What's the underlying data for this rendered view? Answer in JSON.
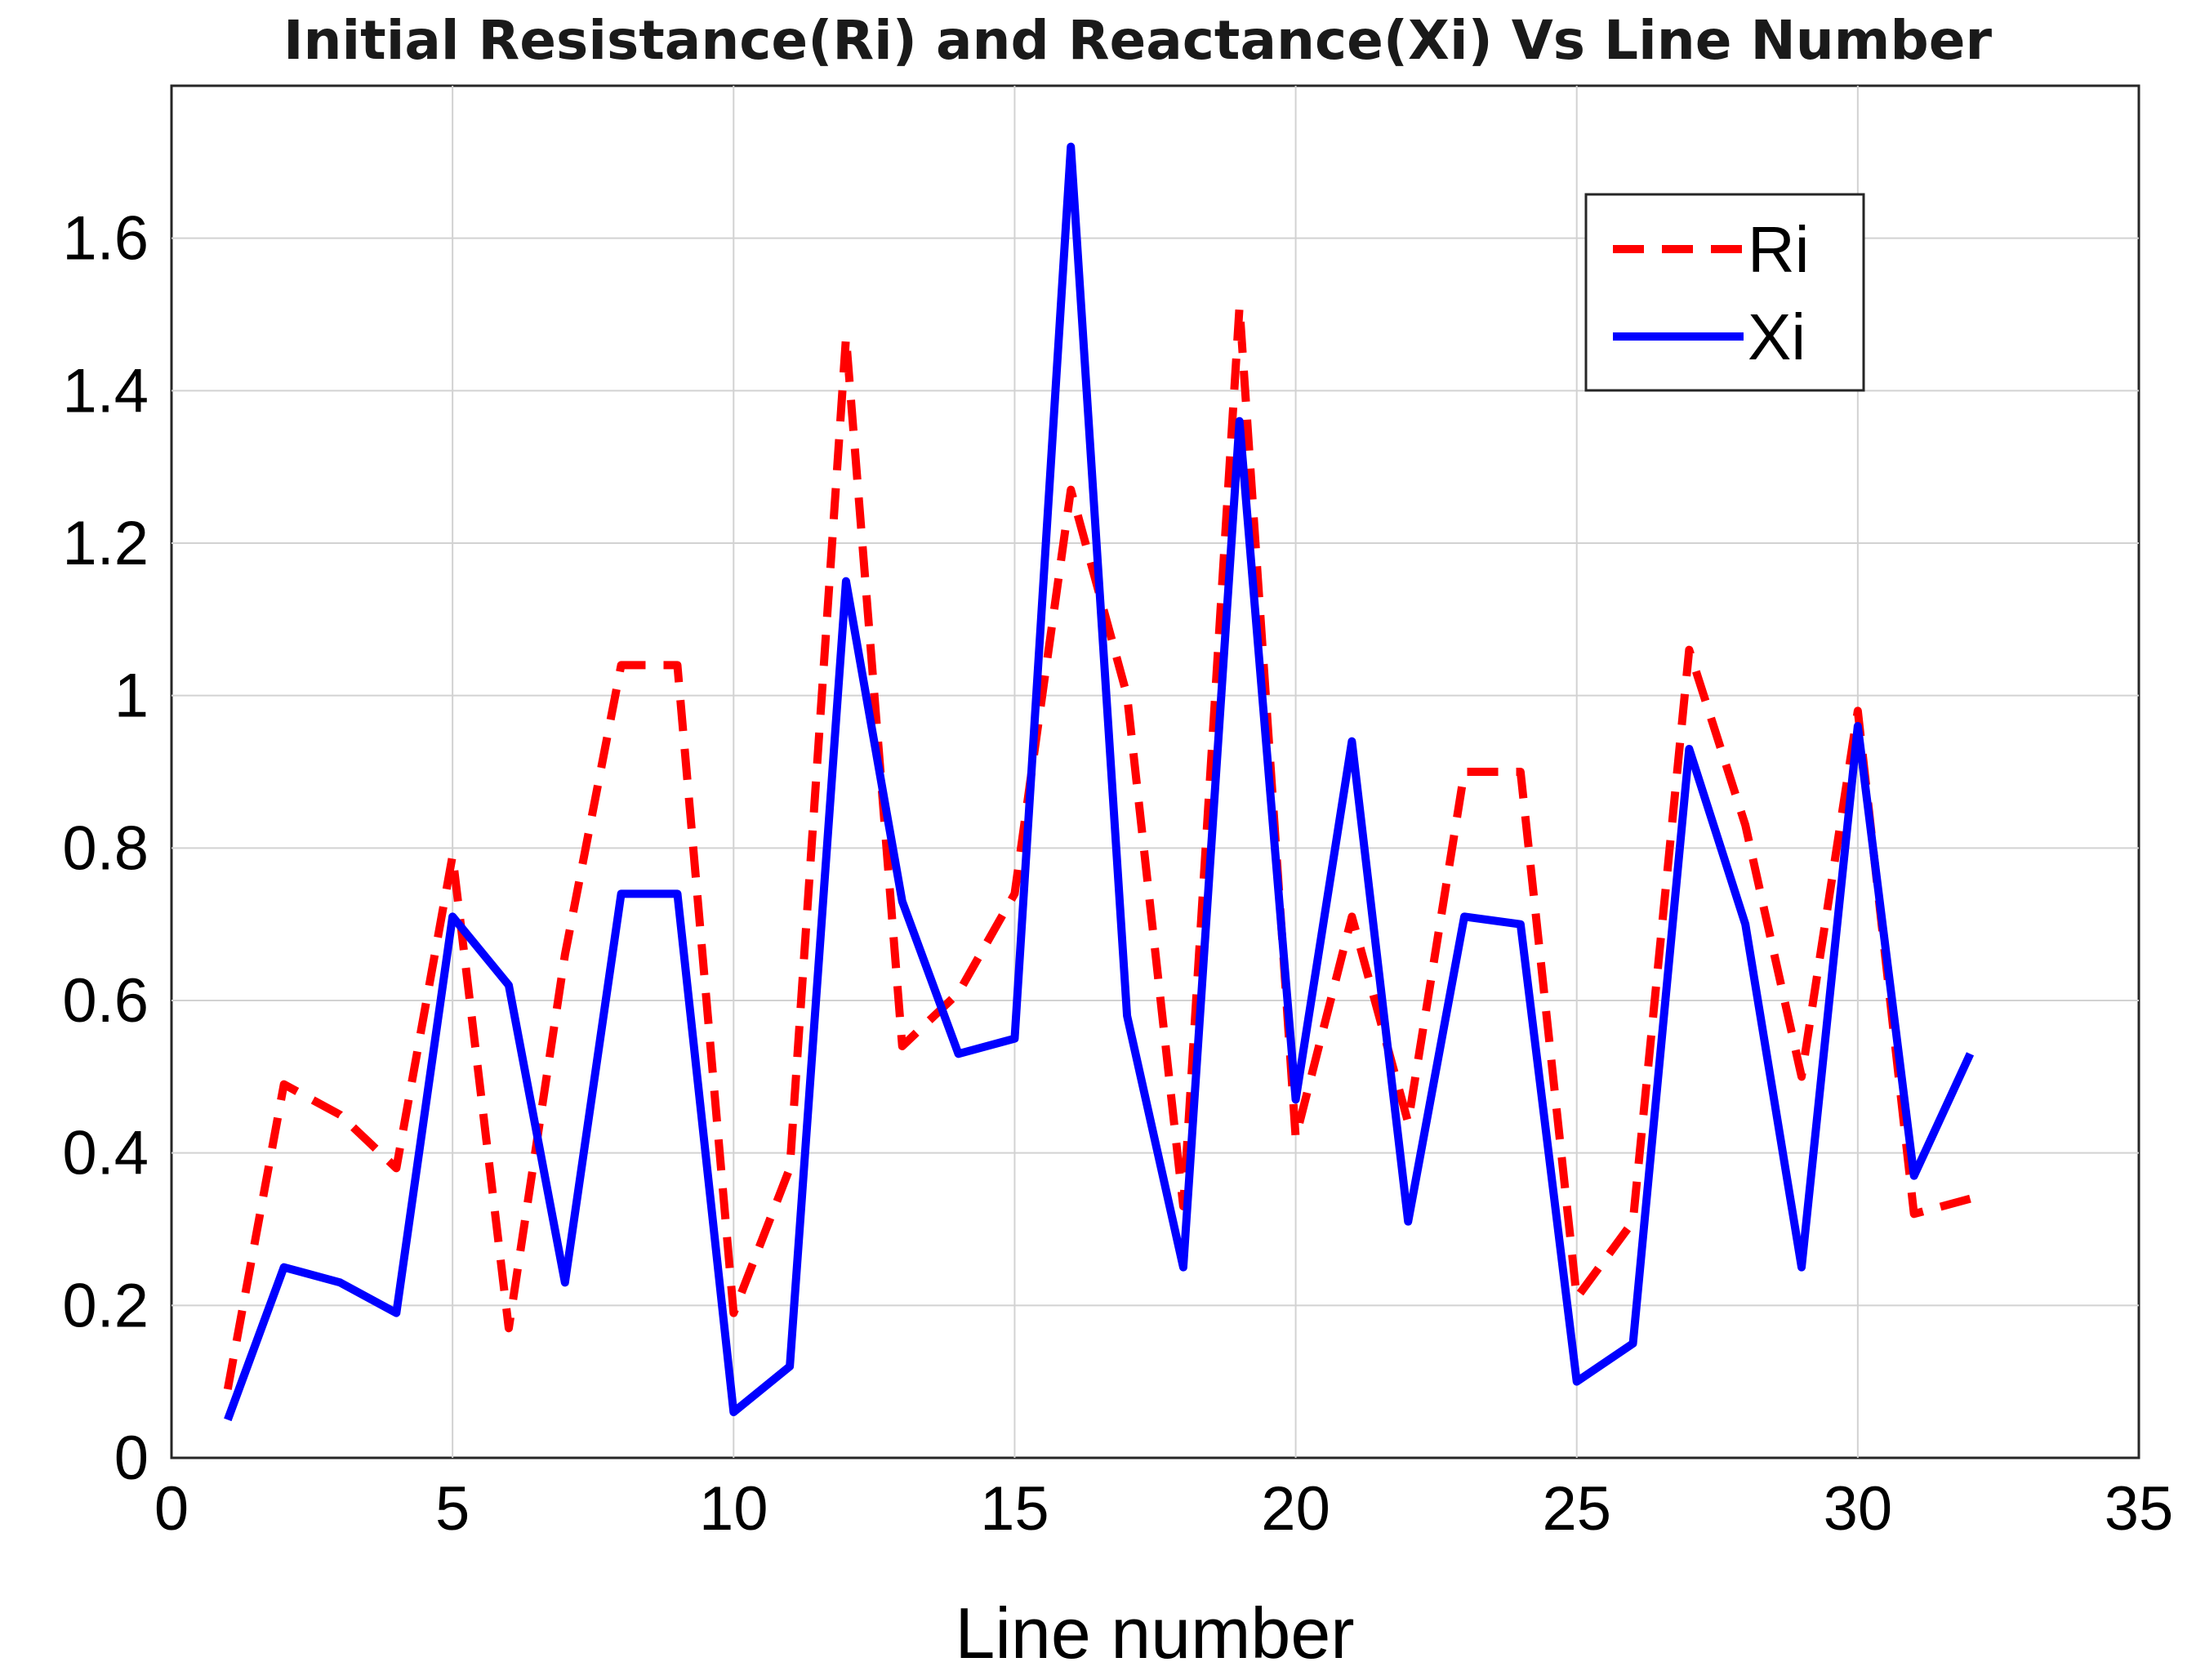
{
  "chart_data": {
    "type": "line",
    "title": "Initial Resistance(Ri) and Reactance(Xi) Vs Line Number",
    "xlabel": "Line number",
    "ylabel": "",
    "xlim": [
      0,
      35
    ],
    "ylim": [
      0,
      1.8
    ],
    "xticks": [
      0,
      5,
      10,
      15,
      20,
      25,
      30,
      35
    ],
    "yticks": [
      0,
      0.2,
      0.4,
      0.6,
      0.8,
      1,
      1.2,
      1.4,
      1.6
    ],
    "ytick_labels": [
      "0",
      "0.2",
      "0.4",
      "0.6",
      "0.8",
      "1",
      "1.2",
      "1.4",
      "1.6"
    ],
    "grid": true,
    "legend_position": "top-right",
    "x": [
      1,
      2,
      3,
      4,
      5,
      6,
      7,
      8,
      9,
      10,
      11,
      12,
      13,
      14,
      15,
      16,
      17,
      18,
      19,
      20,
      21,
      22,
      23,
      24,
      25,
      26,
      27,
      28,
      29,
      30,
      31,
      32
    ],
    "series": [
      {
        "name": "Ri",
        "color": "#ff0000",
        "style": "dashed",
        "values": [
          0.09,
          0.49,
          0.45,
          0.38,
          0.79,
          0.17,
          0.66,
          1.04,
          1.04,
          0.19,
          0.38,
          1.47,
          0.54,
          0.61,
          0.74,
          1.27,
          1.0,
          0.33,
          1.51,
          0.42,
          0.71,
          0.44,
          0.9,
          0.9,
          0.21,
          0.31,
          1.06,
          0.83,
          0.5,
          0.98,
          0.32,
          0.34
        ]
      },
      {
        "name": "Xi",
        "color": "#0000ff",
        "style": "solid",
        "values": [
          0.05,
          0.25,
          0.23,
          0.19,
          0.71,
          0.62,
          0.23,
          0.74,
          0.74,
          0.06,
          0.12,
          1.15,
          0.73,
          0.53,
          0.55,
          1.72,
          0.58,
          0.25,
          1.36,
          0.47,
          0.94,
          0.31,
          0.71,
          0.7,
          0.1,
          0.15,
          0.93,
          0.7,
          0.25,
          0.96,
          0.37,
          0.53
        ]
      }
    ]
  }
}
